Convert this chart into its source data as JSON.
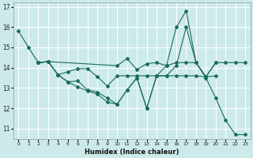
{
  "xlabel": "Humidex (Indice chaleur)",
  "bg_color": "#cdeaea",
  "grid_color": "#ffffff",
  "line_color": "#1a6b5a",
  "xlim": [
    -0.5,
    23.5
  ],
  "ylim": [
    10.5,
    17.2
  ],
  "yticks": [
    11,
    12,
    13,
    14,
    15,
    16,
    17
  ],
  "xticks": [
    0,
    1,
    2,
    3,
    4,
    5,
    6,
    7,
    8,
    9,
    10,
    11,
    12,
    13,
    14,
    15,
    16,
    17,
    18,
    19,
    20,
    21,
    22,
    23
  ],
  "series": [
    {
      "x": [
        0,
        1,
        2,
        3,
        4,
        5,
        6,
        7,
        8,
        9,
        10,
        11,
        12,
        13,
        14,
        15,
        16,
        17,
        18,
        19,
        20,
        21,
        22,
        23
      ],
      "y": [
        15.8,
        15.0,
        14.25,
        14.3,
        13.65,
        13.3,
        13.35,
        12.9,
        12.8,
        12.5,
        12.2,
        12.9,
        13.5,
        12.0,
        13.6,
        14.1,
        16.0,
        16.8,
        14.25,
        13.5,
        12.5,
        11.4,
        10.7,
        10.7
      ]
    },
    {
      "x": [
        2,
        3,
        10,
        11,
        12,
        13,
        14,
        15,
        16,
        17,
        18,
        19,
        20
      ],
      "y": [
        14.25,
        14.3,
        14.1,
        14.45,
        13.9,
        14.2,
        14.25,
        14.1,
        14.25,
        14.25,
        14.25,
        13.55,
        14.25
      ]
    },
    {
      "x": [
        2,
        3,
        4,
        5,
        6,
        7,
        8,
        9,
        10,
        11,
        12,
        13,
        14,
        15,
        16,
        17,
        18,
        19,
        20
      ],
      "y": [
        14.25,
        14.3,
        13.65,
        13.8,
        13.95,
        13.95,
        13.55,
        13.1,
        13.6,
        13.6,
        13.6,
        13.6,
        13.6,
        13.6,
        13.6,
        13.6,
        13.6,
        13.55,
        13.6
      ]
    },
    {
      "x": [
        2,
        3,
        4,
        5,
        6,
        7,
        8,
        9,
        10,
        11,
        12,
        13,
        14,
        15,
        16,
        17,
        18,
        19,
        20,
        21,
        22,
        23
      ],
      "y": [
        14.25,
        14.3,
        13.65,
        13.3,
        13.05,
        12.85,
        12.7,
        12.3,
        12.2,
        12.9,
        13.5,
        12.0,
        13.6,
        13.6,
        14.1,
        16.0,
        14.25,
        13.55,
        14.25,
        14.25,
        14.25,
        14.25
      ]
    }
  ]
}
